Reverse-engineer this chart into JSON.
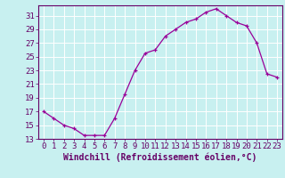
{
  "x_values": [
    0,
    1,
    2,
    3,
    4,
    5,
    6,
    7,
    8,
    9,
    10,
    11,
    12,
    13,
    14,
    15,
    16,
    17,
    18,
    19,
    20,
    21,
    22,
    23
  ],
  "y_values": [
    17,
    16,
    15,
    14.5,
    13.5,
    13.5,
    13.5,
    16,
    19.5,
    23,
    25.5,
    26,
    28,
    29,
    30,
    30.5,
    31.5,
    32,
    31,
    30,
    29.5,
    27,
    22.5,
    22
  ],
  "xlim": [
    -0.5,
    23.5
  ],
  "ylim": [
    13,
    32.5
  ],
  "yticks": [
    13,
    15,
    17,
    19,
    21,
    23,
    25,
    27,
    29,
    31
  ],
  "xticks": [
    0,
    1,
    2,
    3,
    4,
    5,
    6,
    7,
    8,
    9,
    10,
    11,
    12,
    13,
    14,
    15,
    16,
    17,
    18,
    19,
    20,
    21,
    22,
    23
  ],
  "xlabel": "Windchill (Refroidissement éolien,°C)",
  "line_color": "#990099",
  "marker_color": "#990099",
  "bg_color": "#c8f0f0",
  "grid_color": "#ffffff",
  "axis_color": "#660066",
  "xlabel_fontsize": 7,
  "tick_fontsize": 6.5
}
